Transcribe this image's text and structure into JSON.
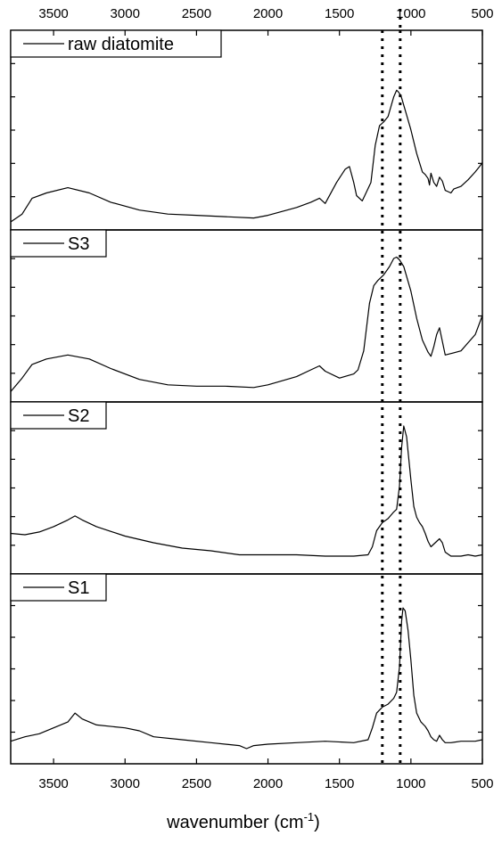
{
  "chart_data": {
    "type": "line",
    "title": "",
    "xlabel": "wavenumber",
    "xlabel_unit_base": "cm",
    "xlabel_unit_exp": "-1",
    "xlim": [
      3800,
      500
    ],
    "x_reversed": true,
    "xticks": [
      3500,
      3000,
      2500,
      2000,
      1500,
      1000,
      500
    ],
    "xtick_labels": [
      "3500",
      "3000",
      "2500",
      "2000",
      "1500",
      "1000",
      "500"
    ],
    "ylabel": "",
    "y_ticks_per_panel": 5,
    "y_tick_labels_shown": false,
    "reference_lines": [
      1200,
      1075
    ],
    "reference_line_style": "dotted",
    "legend_placement": "top-left",
    "series": [
      {
        "name": "raw diatomite",
        "x": [
          3800,
          3720,
          3650,
          3550,
          3400,
          3250,
          3100,
          2900,
          2700,
          2500,
          2300,
          2100,
          2000,
          1900,
          1800,
          1700,
          1640,
          1600,
          1520,
          1460,
          1430,
          1400,
          1380,
          1340,
          1280,
          1250,
          1220,
          1190,
          1160,
          1120,
          1100,
          1090,
          1070,
          1040,
          1000,
          960,
          920,
          900,
          880,
          870,
          860,
          840,
          820,
          800,
          780,
          760,
          740,
          720,
          700,
          650,
          600,
          550,
          520,
          500
        ],
        "y": [
          0.0,
          0.06,
          0.18,
          0.22,
          0.26,
          0.22,
          0.15,
          0.09,
          0.06,
          0.05,
          0.04,
          0.03,
          0.05,
          0.08,
          0.11,
          0.15,
          0.18,
          0.14,
          0.3,
          0.4,
          0.42,
          0.3,
          0.2,
          0.16,
          0.3,
          0.58,
          0.73,
          0.76,
          0.8,
          0.95,
          1.0,
          0.99,
          0.96,
          0.85,
          0.7,
          0.52,
          0.38,
          0.36,
          0.33,
          0.28,
          0.37,
          0.3,
          0.27,
          0.34,
          0.31,
          0.24,
          0.23,
          0.22,
          0.25,
          0.27,
          0.32,
          0.38,
          0.42,
          0.45
        ]
      },
      {
        "name": "S3",
        "x": [
          3800,
          3720,
          3650,
          3550,
          3400,
          3250,
          3100,
          2900,
          2700,
          2500,
          2300,
          2100,
          2000,
          1900,
          1800,
          1700,
          1640,
          1600,
          1500,
          1400,
          1370,
          1330,
          1290,
          1260,
          1230,
          1190,
          1150,
          1120,
          1100,
          1080,
          1050,
          1000,
          960,
          920,
          880,
          860,
          840,
          820,
          800,
          780,
          760,
          720,
          650,
          600,
          550,
          500
        ],
        "y": [
          0.0,
          0.1,
          0.2,
          0.24,
          0.27,
          0.24,
          0.17,
          0.09,
          0.05,
          0.04,
          0.04,
          0.03,
          0.05,
          0.08,
          0.11,
          0.16,
          0.19,
          0.15,
          0.1,
          0.13,
          0.16,
          0.3,
          0.65,
          0.78,
          0.82,
          0.86,
          0.92,
          0.98,
          0.99,
          0.97,
          0.92,
          0.74,
          0.54,
          0.38,
          0.29,
          0.26,
          0.33,
          0.42,
          0.47,
          0.37,
          0.27,
          0.28,
          0.3,
          0.36,
          0.42,
          0.56
        ]
      },
      {
        "name": "S2",
        "x": [
          3800,
          3700,
          3600,
          3500,
          3400,
          3350,
          3300,
          3200,
          3000,
          2800,
          2600,
          2400,
          2200,
          2000,
          1800,
          1600,
          1400,
          1300,
          1270,
          1240,
          1200,
          1160,
          1120,
          1100,
          1080,
          1065,
          1050,
          1030,
          1000,
          980,
          960,
          940,
          920,
          900,
          880,
          860,
          840,
          820,
          800,
          780,
          760,
          720,
          650,
          600,
          550,
          500
        ],
        "y": [
          0.2,
          0.19,
          0.21,
          0.25,
          0.3,
          0.33,
          0.3,
          0.25,
          0.18,
          0.13,
          0.09,
          0.07,
          0.04,
          0.04,
          0.04,
          0.03,
          0.03,
          0.04,
          0.1,
          0.22,
          0.28,
          0.31,
          0.36,
          0.38,
          0.55,
          0.84,
          1.0,
          0.92,
          0.6,
          0.4,
          0.32,
          0.28,
          0.25,
          0.2,
          0.14,
          0.1,
          0.12,
          0.14,
          0.16,
          0.13,
          0.06,
          0.03,
          0.03,
          0.04,
          0.03,
          0.04
        ]
      },
      {
        "name": "S1",
        "x": [
          3800,
          3700,
          3600,
          3500,
          3400,
          3350,
          3300,
          3200,
          3000,
          2900,
          2800,
          2600,
          2400,
          2200,
          2150,
          2100,
          2000,
          1800,
          1600,
          1400,
          1300,
          1270,
          1240,
          1200,
          1160,
          1120,
          1100,
          1080,
          1065,
          1055,
          1040,
          1020,
          1000,
          980,
          960,
          930,
          900,
          880,
          860,
          840,
          820,
          800,
          780,
          760,
          720,
          650,
          600,
          550,
          500
        ],
        "y": [
          0.05,
          0.08,
          0.1,
          0.14,
          0.18,
          0.24,
          0.2,
          0.16,
          0.14,
          0.12,
          0.08,
          0.06,
          0.04,
          0.02,
          0.0,
          0.02,
          0.03,
          0.04,
          0.05,
          0.04,
          0.06,
          0.14,
          0.24,
          0.28,
          0.3,
          0.34,
          0.38,
          0.55,
          0.86,
          0.95,
          0.93,
          0.8,
          0.6,
          0.36,
          0.24,
          0.18,
          0.15,
          0.12,
          0.08,
          0.06,
          0.05,
          0.09,
          0.06,
          0.04,
          0.04,
          0.05,
          0.05,
          0.05,
          0.06
        ]
      }
    ]
  }
}
